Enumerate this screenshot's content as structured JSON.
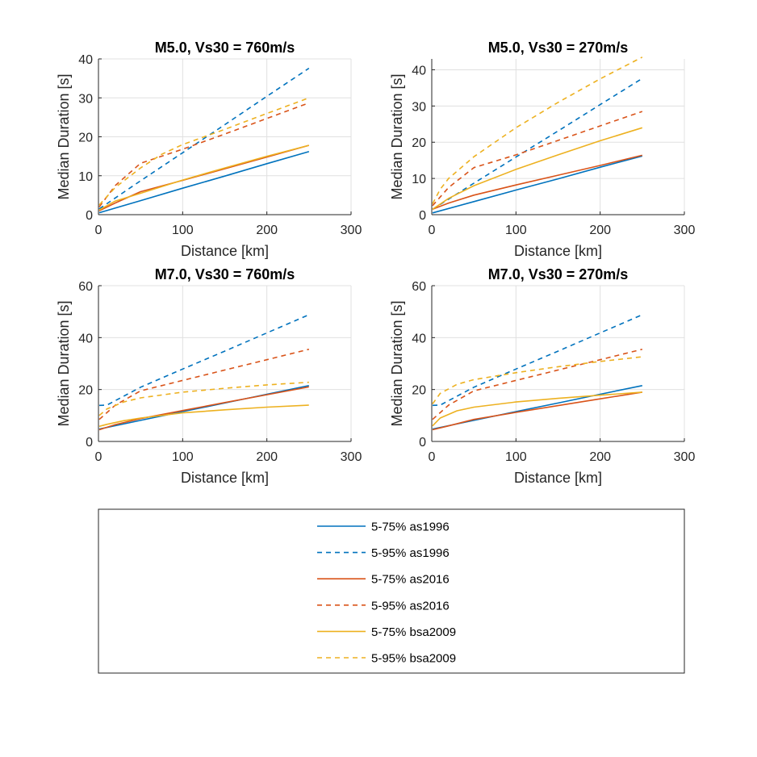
{
  "chart_data": [
    {
      "type": "line",
      "title": "M5.0, Vs30 = 760m/s",
      "xlabel": "Distance [km]",
      "ylabel": "Median Duration [s]",
      "xlim": [
        0,
        300
      ],
      "ylim": [
        0,
        40
      ],
      "xticks": [
        0,
        100,
        200,
        300
      ],
      "yticks": [
        0,
        10,
        20,
        30,
        40
      ],
      "grid": true,
      "series": [
        {
          "key": "s75_as1996",
          "x": [
            1,
            50,
            100,
            150,
            200,
            250
          ],
          "y": [
            0.5,
            3.6,
            6.8,
            9.9,
            13.1,
            16.2
          ]
        },
        {
          "key": "s95_as1996",
          "x": [
            1,
            50,
            100,
            150,
            200,
            250
          ],
          "y": [
            1.5,
            8.7,
            15.9,
            23.1,
            30.4,
            37.6
          ]
        },
        {
          "key": "s75_as2016",
          "x": [
            1,
            20,
            50,
            100,
            150,
            200,
            250
          ],
          "y": [
            1.0,
            3.0,
            5.9,
            8.8,
            11.8,
            14.8,
            17.8
          ]
        },
        {
          "key": "s95_as2016",
          "x": [
            1,
            20,
            50,
            100,
            150,
            200,
            250
          ],
          "y": [
            2.0,
            7.5,
            13.2,
            16.8,
            20.7,
            24.7,
            28.7
          ]
        },
        {
          "key": "s75_bsa2009",
          "x": [
            1,
            20,
            50,
            100,
            150,
            200,
            250
          ],
          "y": [
            1.2,
            3.5,
            5.5,
            8.9,
            12.0,
            15.0,
            17.8
          ]
        },
        {
          "key": "s95_bsa2009",
          "x": [
            1,
            20,
            50,
            75,
            100,
            150,
            200,
            250
          ],
          "y": [
            2.5,
            7.0,
            12.0,
            15.5,
            18.0,
            21.9,
            26.0,
            30.0
          ]
        }
      ]
    },
    {
      "type": "line",
      "title": "M5.0, Vs30 = 270m/s",
      "xlabel": "Distance [km]",
      "ylabel": "Median Duration [s]",
      "xlim": [
        0,
        300
      ],
      "ylim": [
        0,
        43
      ],
      "xticks": [
        0,
        100,
        200,
        300
      ],
      "yticks": [
        0,
        10,
        20,
        30,
        40
      ],
      "grid": true,
      "series": [
        {
          "key": "s75_as1996",
          "x": [
            1,
            50,
            100,
            150,
            200,
            250
          ],
          "y": [
            0.5,
            3.6,
            6.8,
            9.9,
            13.1,
            16.2
          ]
        },
        {
          "key": "s95_as1996",
          "x": [
            1,
            50,
            100,
            150,
            200,
            250
          ],
          "y": [
            1.5,
            8.7,
            15.9,
            23.1,
            30.4,
            37.6
          ]
        },
        {
          "key": "s75_as2016",
          "x": [
            1,
            20,
            50,
            100,
            150,
            200,
            250
          ],
          "y": [
            1.5,
            3.2,
            5.4,
            8.2,
            10.9,
            13.6,
            16.4
          ]
        },
        {
          "key": "s95_as2016",
          "x": [
            1,
            20,
            50,
            100,
            150,
            200,
            250
          ],
          "y": [
            2.5,
            7.5,
            13.0,
            16.5,
            20.5,
            24.5,
            28.5
          ]
        },
        {
          "key": "s75_bsa2009",
          "x": [
            1,
            20,
            50,
            100,
            150,
            200,
            250
          ],
          "y": [
            1.5,
            4.5,
            8.0,
            12.5,
            16.5,
            20.4,
            24.0
          ]
        },
        {
          "key": "s95_bsa2009",
          "x": [
            1,
            10,
            20,
            50,
            100,
            150,
            200,
            250
          ],
          "y": [
            3.0,
            7.0,
            10.0,
            16.0,
            24.0,
            31.0,
            37.5,
            43.5
          ]
        }
      ]
    },
    {
      "type": "line",
      "title": "M7.0, Vs30 = 760m/s",
      "xlabel": "Distance [km]",
      "ylabel": "Median Duration [s]",
      "xlim": [
        0,
        300
      ],
      "ylim": [
        0,
        60
      ],
      "xticks": [
        0,
        100,
        200,
        300
      ],
      "yticks": [
        0,
        20,
        40,
        60
      ],
      "grid": true,
      "series": [
        {
          "key": "s75_as1996",
          "x": [
            1,
            50,
            100,
            150,
            200,
            250
          ],
          "y": [
            4.8,
            8.1,
            11.5,
            14.8,
            18.2,
            21.5
          ]
        },
        {
          "key": "s95_as1996",
          "x": [
            1,
            10,
            50,
            100,
            150,
            200,
            250
          ],
          "y": [
            13.9,
            14.0,
            20.9,
            27.9,
            34.8,
            41.8,
            48.8
          ]
        },
        {
          "key": "s75_as2016",
          "x": [
            1,
            20,
            50,
            100,
            150,
            200,
            250
          ],
          "y": [
            4.5,
            6.5,
            8.8,
            11.9,
            15.0,
            18.0,
            21.0
          ]
        },
        {
          "key": "s95_as2016",
          "x": [
            1,
            20,
            50,
            100,
            150,
            200,
            250
          ],
          "y": [
            8.5,
            14.0,
            19.5,
            23.5,
            27.5,
            31.5,
            35.5
          ]
        },
        {
          "key": "s75_bsa2009",
          "x": [
            1,
            10,
            30,
            50,
            100,
            150,
            200,
            250
          ],
          "y": [
            5.8,
            6.6,
            8.0,
            9.0,
            11.0,
            12.2,
            13.2,
            14.0
          ]
        },
        {
          "key": "s95_bsa2009",
          "x": [
            1,
            10,
            30,
            50,
            100,
            150,
            200,
            250
          ],
          "y": [
            10.0,
            12.5,
            15.2,
            16.8,
            19.0,
            20.5,
            21.8,
            22.8
          ]
        }
      ]
    },
    {
      "type": "line",
      "title": "M7.0, Vs30 = 270m/s",
      "xlabel": "Distance [km]",
      "ylabel": "Median Duration [s]",
      "xlim": [
        0,
        300
      ],
      "ylim": [
        0,
        60
      ],
      "xticks": [
        0,
        100,
        200,
        300
      ],
      "yticks": [
        0,
        20,
        40,
        60
      ],
      "grid": true,
      "series": [
        {
          "key": "s75_as1996",
          "x": [
            1,
            50,
            100,
            150,
            200,
            250
          ],
          "y": [
            4.8,
            8.1,
            11.5,
            14.8,
            18.2,
            21.5
          ]
        },
        {
          "key": "s95_as1996",
          "x": [
            1,
            10,
            50,
            100,
            150,
            200,
            250
          ],
          "y": [
            13.9,
            14.0,
            20.9,
            27.9,
            34.8,
            41.8,
            48.8
          ]
        },
        {
          "key": "s75_as2016",
          "x": [
            1,
            20,
            50,
            100,
            150,
            200,
            250
          ],
          "y": [
            4.5,
            6.0,
            8.5,
            11.2,
            13.8,
            16.4,
            19.0
          ]
        },
        {
          "key": "s95_as2016",
          "x": [
            1,
            20,
            50,
            100,
            150,
            200,
            250
          ],
          "y": [
            8.5,
            14.0,
            19.5,
            23.5,
            27.5,
            31.5,
            35.5
          ]
        },
        {
          "key": "s75_bsa2009",
          "x": [
            1,
            10,
            30,
            50,
            100,
            150,
            200,
            250
          ],
          "y": [
            6.0,
            9.0,
            11.8,
            13.2,
            15.2,
            16.6,
            17.8,
            19.0
          ]
        },
        {
          "key": "s95_bsa2009",
          "x": [
            1,
            10,
            30,
            50,
            100,
            150,
            200,
            250
          ],
          "y": [
            14.5,
            18.5,
            22.0,
            23.8,
            26.5,
            28.8,
            30.8,
            32.6
          ]
        }
      ]
    }
  ],
  "legend": {
    "placement": "bottom",
    "items": [
      {
        "key": "s75_as1996",
        "label": "5-75% as1996",
        "color": "#0072BD",
        "dashed": false
      },
      {
        "key": "s95_as1996",
        "label": "5-95% as1996",
        "color": "#0072BD",
        "dashed": true
      },
      {
        "key": "s75_as2016",
        "label": "5-75% as2016",
        "color": "#D95319",
        "dashed": false
      },
      {
        "key": "s95_as2016",
        "label": "5-95% as2016",
        "color": "#D95319",
        "dashed": true
      },
      {
        "key": "s75_bsa2009",
        "label": "5-75% bsa2009",
        "color": "#EDB120",
        "dashed": false
      },
      {
        "key": "s95_bsa2009",
        "label": "5-95% bsa2009",
        "color": "#EDB120",
        "dashed": true
      }
    ]
  }
}
